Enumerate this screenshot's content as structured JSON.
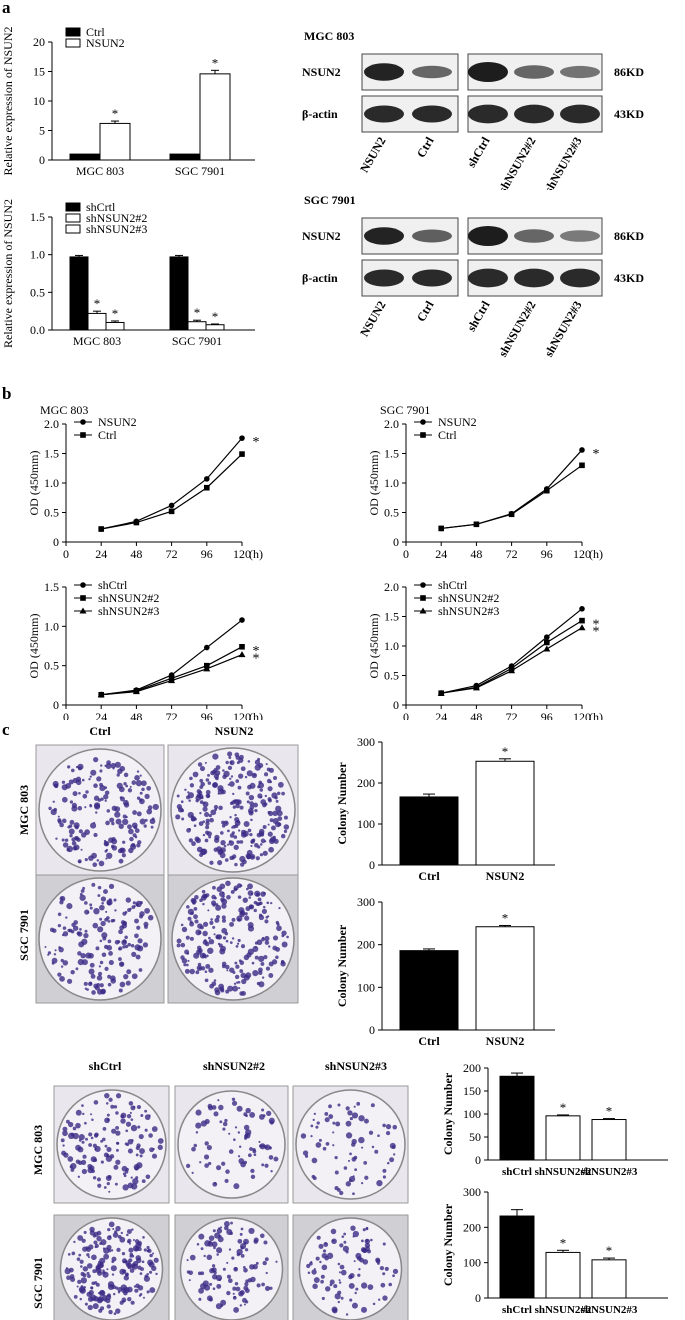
{
  "panels": {
    "a": "a",
    "b": "b",
    "c": "c"
  },
  "expr_charts": [
    {
      "type": "bar",
      "ylabel": "Relative expression of NSUN2",
      "categories": [
        "MGC 803",
        "SGC 7901"
      ],
      "series": [
        {
          "name": "Ctrl",
          "values": [
            1.0,
            1.0
          ],
          "errors": [
            0,
            0
          ],
          "color": "#000000"
        },
        {
          "name": "NSUN2",
          "values": [
            6.2,
            14.6
          ],
          "errors": [
            0.4,
            0.6
          ],
          "color": "#ffffff"
        }
      ],
      "ylim": [
        0,
        20
      ],
      "yticks": [
        0,
        5,
        10,
        15,
        20
      ],
      "sig": [
        [
          false,
          true
        ],
        [
          false,
          true
        ]
      ]
    },
    {
      "type": "bar",
      "ylabel": "Relative expression of NSUN2",
      "categories": [
        "MGC 803",
        "SGC 7901"
      ],
      "series": [
        {
          "name": "shCrtl",
          "values": [
            0.97,
            0.97
          ],
          "errors": [
            0.02,
            0.02
          ],
          "color": "#000000"
        },
        {
          "name": "shNSUN2#2",
          "values": [
            0.22,
            0.11
          ],
          "errors": [
            0.03,
            0.02
          ],
          "color": "#ffffff"
        },
        {
          "name": "shNSUN2#3",
          "values": [
            0.1,
            0.07
          ],
          "errors": [
            0.02,
            0.01
          ],
          "color": "#ffffff"
        }
      ],
      "ylim": [
        0,
        1.5
      ],
      "yticks": [
        0.0,
        0.5,
        1.0,
        1.5
      ],
      "sig": [
        [
          false,
          true,
          true
        ],
        [
          false,
          true,
          true
        ]
      ]
    }
  ],
  "blots": [
    {
      "cell": "MGC 803",
      "rows": [
        "NSUN2",
        "β-actin"
      ],
      "sizes": [
        "86KD",
        "43KD"
      ],
      "lanes_left": [
        "NSUN2",
        "Ctrl"
      ],
      "lanes_right": [
        "shCtrl",
        "shNSUN2#2",
        "shNSUN2#3"
      ],
      "nsun2_left": [
        0.95,
        0.45
      ],
      "nsun2_right": [
        1.0,
        0.45,
        0.35
      ]
    },
    {
      "cell": "SGC 7901",
      "rows": [
        "NSUN2",
        "β-actin"
      ],
      "sizes": [
        "86KD",
        "43KD"
      ],
      "lanes_left": [
        "NSUN2",
        "Ctrl"
      ],
      "lanes_right": [
        "shCtrl",
        "shNSUN2#2",
        "shNSUN2#3"
      ],
      "nsun2_left": [
        0.95,
        0.5
      ],
      "nsun2_right": [
        1.0,
        0.45,
        0.3
      ]
    }
  ],
  "growth_charts": [
    {
      "type": "line",
      "title": "MGC 803",
      "ylabel": "OD (450mm)",
      "xunit": "(h)",
      "x": [
        0,
        24,
        48,
        72,
        96,
        120
      ],
      "ylim": [
        0,
        2.0
      ],
      "yticks": [
        0,
        0.5,
        1.0,
        1.5,
        2.0
      ],
      "series": [
        {
          "name": "NSUN2",
          "marker": "circle",
          "x": [
            24,
            48,
            72,
            96,
            120
          ],
          "values": [
            0.22,
            0.35,
            0.62,
            1.07,
            1.76
          ]
        },
        {
          "name": "Ctrl",
          "marker": "square",
          "x": [
            24,
            48,
            72,
            96,
            120
          ],
          "values": [
            0.22,
            0.33,
            0.52,
            0.92,
            1.49
          ]
        }
      ],
      "stars": [
        "*"
      ]
    },
    {
      "type": "line",
      "title": "SGC 7901",
      "ylabel": "OD (450mm)",
      "xunit": "(h)",
      "x": [
        0,
        24,
        48,
        72,
        96,
        120
      ],
      "ylim": [
        0,
        2.0
      ],
      "yticks": [
        0,
        0.5,
        1.0,
        1.5,
        2.0
      ],
      "series": [
        {
          "name": "NSUN2",
          "marker": "circle",
          "x": [
            24,
            48,
            72,
            96,
            120
          ],
          "values": [
            0.23,
            0.3,
            0.48,
            0.9,
            1.56
          ]
        },
        {
          "name": "Ctrl",
          "marker": "square",
          "x": [
            24,
            48,
            72,
            96,
            120
          ],
          "values": [
            0.23,
            0.3,
            0.47,
            0.87,
            1.3
          ]
        }
      ],
      "stars": [
        "*"
      ]
    },
    {
      "type": "line",
      "title": "",
      "ylabel": "OD (450mm)",
      "xunit": "(h)",
      "x": [
        0,
        24,
        48,
        72,
        96,
        120
      ],
      "ylim": [
        0,
        1.5
      ],
      "yticks": [
        0,
        0.5,
        1.0,
        1.5
      ],
      "series": [
        {
          "name": "shCtrl",
          "marker": "circle",
          "x": [
            24,
            48,
            72,
            96,
            120
          ],
          "values": [
            0.13,
            0.19,
            0.38,
            0.73,
            1.08
          ]
        },
        {
          "name": "shNSUN2#2",
          "marker": "square",
          "x": [
            24,
            48,
            72,
            96,
            120
          ],
          "values": [
            0.13,
            0.18,
            0.34,
            0.5,
            0.74
          ]
        },
        {
          "name": "shNSUN2#3",
          "marker": "triangle",
          "x": [
            24,
            48,
            72,
            96,
            120
          ],
          "values": [
            0.13,
            0.17,
            0.31,
            0.46,
            0.64
          ]
        }
      ],
      "stars": [
        "*",
        "*"
      ]
    },
    {
      "type": "line",
      "title": "",
      "ylabel": "OD (450mm)",
      "xunit": "(h)",
      "x": [
        0,
        24,
        48,
        72,
        96,
        120
      ],
      "ylim": [
        0,
        2.0
      ],
      "yticks": [
        0,
        0.5,
        1.0,
        1.5,
        2.0
      ],
      "series": [
        {
          "name": "shCtrl",
          "marker": "circle",
          "x": [
            24,
            48,
            72,
            96,
            120
          ],
          "values": [
            0.2,
            0.33,
            0.66,
            1.15,
            1.63
          ]
        },
        {
          "name": "shNSUN2#2",
          "marker": "square",
          "x": [
            24,
            48,
            72,
            96,
            120
          ],
          "values": [
            0.2,
            0.3,
            0.62,
            1.06,
            1.43
          ]
        },
        {
          "name": "shNSUN2#3",
          "marker": "triangle",
          "x": [
            24,
            48,
            72,
            96,
            120
          ],
          "values": [
            0.2,
            0.29,
            0.58,
            0.95,
            1.31
          ]
        }
      ],
      "stars": [
        "*",
        "*"
      ]
    }
  ],
  "colony_images": {
    "top_labels": [
      "Ctrl",
      "NSUN2"
    ],
    "bottom_labels": [
      "shCtrl",
      "shNSUN2#2",
      "shNSUN2#3"
    ],
    "rows": [
      "MGC 803",
      "SGC 7901"
    ]
  },
  "colony_charts": [
    {
      "type": "bar",
      "ylabel": "Colony Number",
      "categories": [
        "Ctrl",
        "NSUN2"
      ],
      "values": [
        166,
        253
      ],
      "errors": [
        7,
        6
      ],
      "fills": [
        "#000000",
        "#ffffff"
      ],
      "sig": [
        false,
        true
      ],
      "ylim": [
        0,
        300
      ],
      "yticks": [
        0,
        100,
        200,
        300
      ]
    },
    {
      "type": "bar",
      "ylabel": "Colony Number",
      "categories": [
        "Ctrl",
        "NSUN2"
      ],
      "values": [
        186,
        242
      ],
      "errors": [
        4,
        3
      ],
      "fills": [
        "#000000",
        "#ffffff"
      ],
      "sig": [
        false,
        true
      ],
      "ylim": [
        0,
        300
      ],
      "yticks": [
        0,
        100,
        200,
        300
      ]
    },
    {
      "type": "bar",
      "ylabel": "Colony Number",
      "categories": [
        "shCtrl",
        "shNSUN2#2",
        "shNSUN2#3"
      ],
      "values": [
        182,
        96,
        88
      ],
      "errors": [
        7,
        2,
        2
      ],
      "fills": [
        "#000000",
        "#ffffff",
        "#ffffff"
      ],
      "sig": [
        false,
        true,
        true
      ],
      "ylim": [
        0,
        200
      ],
      "yticks": [
        0,
        50,
        100,
        150,
        200
      ]
    },
    {
      "type": "bar",
      "ylabel": "Colony Number",
      "categories": [
        "shCtrl",
        "shNSUN2#2",
        "shNSUN2#3"
      ],
      "values": [
        232,
        129,
        108
      ],
      "errors": [
        18,
        6,
        5
      ],
      "fills": [
        "#000000",
        "#ffffff",
        "#ffffff"
      ],
      "sig": [
        false,
        true,
        true
      ],
      "ylim": [
        0,
        300
      ],
      "yticks": [
        0,
        100,
        200,
        300
      ]
    }
  ],
  "colors": {
    "dish_stain": "#3c2a86",
    "dish_bg": "#e6e1ea",
    "axis": "#000000"
  }
}
